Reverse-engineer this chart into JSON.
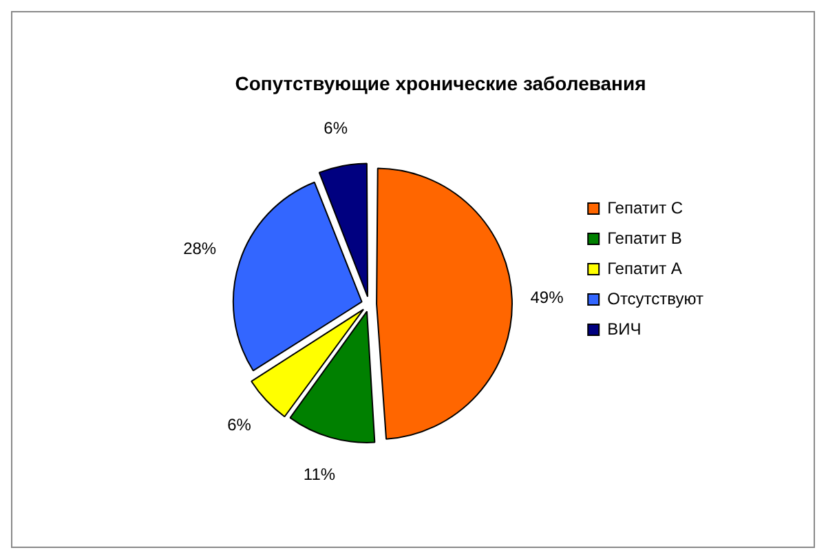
{
  "chart_data": {
    "type": "pie",
    "title": "Сопутствующие хронические заболевания",
    "categories": [
      "Гепатит С",
      "Гепатит В",
      "Гепатит А",
      "Отсутствуют",
      "ВИЧ"
    ],
    "values": [
      49,
      11,
      6,
      28,
      6
    ],
    "colors": [
      "#ff6600",
      "#008000",
      "#ffff00",
      "#3366ff",
      "#000080"
    ],
    "value_labels": [
      "49%",
      "11%",
      "6%",
      "28%",
      "6%"
    ],
    "legend": "right"
  }
}
